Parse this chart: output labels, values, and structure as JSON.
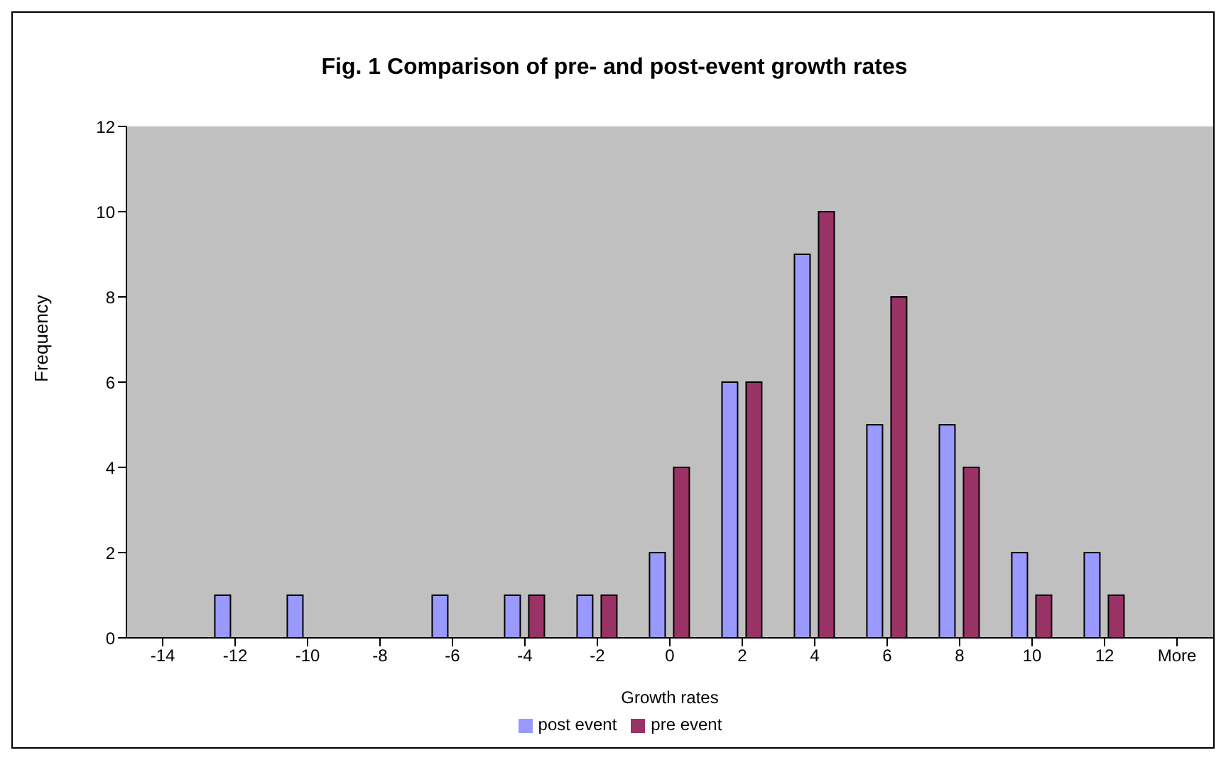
{
  "chart_data": {
    "type": "bar",
    "title": "Fig. 1 Comparison of pre- and post-event growth rates",
    "xlabel": "Growth rates",
    "ylabel": "Frequency",
    "categories": [
      "-14",
      "-12",
      "-10",
      "-8",
      "-6",
      "-4",
      "-2",
      "0",
      "2",
      "4",
      "6",
      "8",
      "10",
      "12",
      "More"
    ],
    "series": [
      {
        "name": "post event",
        "color": "#9999ff",
        "values": [
          0,
          1,
          1,
          0,
          1,
          1,
          1,
          2,
          6,
          9,
          5,
          5,
          2,
          2,
          0
        ]
      },
      {
        "name": "pre event",
        "color": "#993366",
        "values": [
          0,
          0,
          0,
          0,
          0,
          1,
          1,
          4,
          6,
          10,
          8,
          4,
          1,
          1,
          0
        ]
      }
    ],
    "ylim": [
      0,
      12
    ],
    "yticks": [
      0,
      2,
      4,
      6,
      8,
      10,
      12
    ],
    "grid": false,
    "legend": "bottom"
  }
}
